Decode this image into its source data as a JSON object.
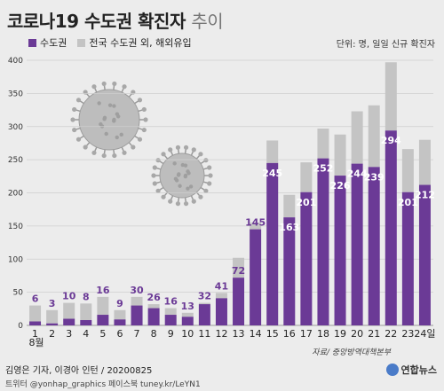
{
  "title_bold": "코로나19 수도권 확진자",
  "title_light": "추이",
  "legend": {
    "metro": "수도권",
    "other": "전국 수도권 외, 해외유입"
  },
  "unit": "단위: 명, 일일 신규 확진자",
  "source": "자료/ 중앙방역대책본부",
  "credit": "김영은 기자, 이경아 인턴 / 20200825",
  "social": "트위터 @yonhap_graphics  페이스북 tuney.kr/LeYN1",
  "logo": "연합뉴스",
  "colors": {
    "metro": "#6b3a96",
    "other": "#c4c4c4",
    "virus": "#b0b0b0"
  },
  "chart_data": {
    "type": "bar",
    "categories": [
      "1",
      "2",
      "3",
      "4",
      "5",
      "6",
      "7",
      "8",
      "9",
      "10",
      "11",
      "12",
      "13",
      "14",
      "15",
      "16",
      "17",
      "18",
      "19",
      "20",
      "21",
      "22",
      "23",
      "24일"
    ],
    "month_label": "8월",
    "series": [
      {
        "name": "수도권",
        "values": [
          6,
          3,
          10,
          8,
          16,
          9,
          30,
          26,
          16,
          13,
          32,
          41,
          72,
          145,
          245,
          163,
          201,
          252,
          226,
          244,
          239,
          294,
          201,
          212
        ]
      },
      {
        "name": "전국 수도권 외, 해외유입",
        "values": [
          24,
          20,
          24,
          25,
          27,
          14,
          13,
          6,
          10,
          6,
          2,
          8,
          30,
          10,
          34,
          34,
          45,
          45,
          62,
          79,
          93,
          103,
          65,
          68
        ]
      }
    ],
    "ylim": [
      0,
      400
    ],
    "yticks": [
      0,
      50,
      100,
      150,
      200,
      250,
      300,
      350,
      400
    ],
    "stacked": true,
    "grid": true
  }
}
